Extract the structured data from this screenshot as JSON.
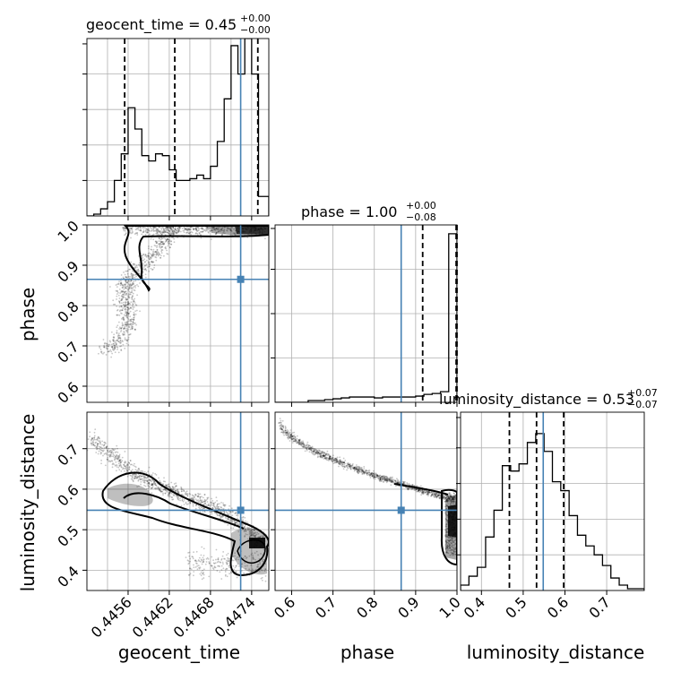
{
  "colors": {
    "truth": "#4682b4",
    "hist": "#000000",
    "grid": "#b0b0b0",
    "points": "#000000"
  },
  "chart_data": {
    "type": "corner",
    "parameters": [
      "geocent_time",
      "phase",
      "luminosity_distance"
    ],
    "truth": {
      "geocent_time": 0.44724,
      "phase": 0.865,
      "luminosity_distance": 0.548
    },
    "panels": {
      "geocent_time_hist": {
        "title_main": "geocent_time = 0.45",
        "title_sup": "+0.00",
        "title_sub": "−0.00",
        "xlim": [
          0.445,
          0.44765
        ],
        "ylim": [
          0,
          1.0
        ],
        "edges": [
          0.445,
          0.4451,
          0.4452,
          0.4453,
          0.4454,
          0.4455,
          0.4456,
          0.4457,
          0.4458,
          0.4459,
          0.446,
          0.4461,
          0.4462,
          0.4463,
          0.4464,
          0.4465,
          0.4466,
          0.4467,
          0.4468,
          0.4469,
          0.447,
          0.4471,
          0.4472,
          0.4473,
          0.4474,
          0.4475,
          0.44765
        ],
        "counts": [
          0.0,
          0.01,
          0.04,
          0.08,
          0.2,
          0.35,
          0.61,
          0.49,
          0.34,
          0.31,
          0.35,
          0.34,
          0.26,
          0.2,
          0.2,
          0.21,
          0.23,
          0.21,
          0.28,
          0.42,
          0.66,
          0.96,
          0.8,
          1.0,
          0.8,
          0.11
        ],
        "quantiles": [
          0.44555,
          0.44628,
          0.44749
        ],
        "xgrid": [
          0.4453,
          0.4456,
          0.4459,
          0.4462,
          0.4465,
          0.4468,
          0.4471,
          0.4474
        ],
        "ygrid": [
          0.2,
          0.4,
          0.6,
          0.8
        ]
      },
      "phase_hist": {
        "title_main": "phase = 1.00",
        "title_sup": "+0.00",
        "title_sub": "−0.08",
        "xlim": [
          0.56,
          1.0
        ],
        "ylim": [
          0,
          1.0
        ],
        "edges": [
          0.56,
          0.58,
          0.6,
          0.62,
          0.64,
          0.66,
          0.68,
          0.7,
          0.72,
          0.74,
          0.76,
          0.78,
          0.8,
          0.82,
          0.84,
          0.86,
          0.88,
          0.9,
          0.92,
          0.94,
          0.96,
          0.98,
          1.0
        ],
        "counts": [
          0.0,
          0.0,
          0.0,
          0.0,
          0.01,
          0.01,
          0.015,
          0.02,
          0.025,
          0.03,
          0.03,
          0.03,
          0.025,
          0.03,
          0.03,
          0.03,
          0.03,
          0.035,
          0.045,
          0.05,
          0.06,
          0.95
        ],
        "quantiles": [
          0.917,
          0.998,
          1.0
        ],
        "xgrid": [
          0.6,
          0.7,
          0.8,
          0.9,
          1.0
        ],
        "ygrid": [
          0.25,
          0.5,
          0.75
        ]
      },
      "luminosity_distance_hist": {
        "title_main": "luminosity_distance = 0.53",
        "title_sup": "+0.07",
        "title_sub": "−0.07",
        "xlim": [
          0.35,
          0.79
        ],
        "ylim": [
          0,
          1.0
        ],
        "edges": [
          0.35,
          0.37,
          0.39,
          0.41,
          0.43,
          0.45,
          0.47,
          0.49,
          0.51,
          0.53,
          0.55,
          0.57,
          0.59,
          0.61,
          0.63,
          0.65,
          0.67,
          0.69,
          0.71,
          0.73,
          0.75,
          0.77,
          0.79
        ],
        "counts": [
          0.03,
          0.08,
          0.13,
          0.3,
          0.45,
          0.7,
          0.67,
          0.71,
          0.83,
          0.88,
          0.78,
          0.61,
          0.56,
          0.42,
          0.31,
          0.25,
          0.2,
          0.14,
          0.07,
          0.03,
          0.01,
          0.01
        ],
        "quantiles": [
          0.467,
          0.532,
          0.597
        ],
        "xgrid": [
          0.4,
          0.5,
          0.6,
          0.7
        ],
        "ygrid": [
          0.2,
          0.4,
          0.6,
          0.8
        ]
      },
      "phase_vs_geocent_time": {
        "xlim": [
          0.445,
          0.44765
        ],
        "ylim": [
          0.56,
          1.0
        ],
        "yticks": [
          "0.6",
          "0.7",
          "0.8",
          "0.9",
          "1.0"
        ],
        "yticks_values": [
          0.6,
          0.7,
          0.8,
          0.9,
          1.0
        ],
        "xgrid": [
          0.4453,
          0.4456,
          0.4459,
          0.4462,
          0.4465,
          0.4468,
          0.4471,
          0.4474
        ]
      },
      "luminosity_distance_vs_geocent_time": {
        "xlim": [
          0.445,
          0.44765
        ],
        "ylim": [
          0.35,
          0.79
        ],
        "xticks": [
          "0.4456",
          "0.4462",
          "0.4468",
          "0.4474"
        ],
        "xticks_values": [
          0.4456,
          0.4462,
          0.4468,
          0.4474
        ],
        "yticks": [
          "0.4",
          "0.5",
          "0.6",
          "0.7"
        ],
        "yticks_values": [
          0.4,
          0.5,
          0.6,
          0.7
        ],
        "xgrid": [
          0.4453,
          0.4456,
          0.4459,
          0.4462,
          0.4465,
          0.4468,
          0.4471,
          0.4474
        ]
      },
      "luminosity_distance_vs_phase": {
        "xlim": [
          0.56,
          1.0
        ],
        "ylim": [
          0.35,
          0.79
        ],
        "xticks": [
          "0.6",
          "0.7",
          "0.8",
          "0.9",
          "1.0"
        ],
        "xticks_values": [
          0.6,
          0.7,
          0.8,
          0.9,
          1.0
        ],
        "yticks_values": [
          0.4,
          0.5,
          0.6,
          0.7
        ]
      },
      "luminosity_distance_axis": {
        "xticks": [
          "0.4",
          "0.5",
          "0.6",
          "0.7"
        ],
        "xticks_values": [
          0.4,
          0.5,
          0.6,
          0.7
        ]
      }
    },
    "xlabels": [
      "geocent_time",
      "phase",
      "luminosity_distance"
    ],
    "ylabels": [
      "phase",
      "luminosity_distance"
    ],
    "grid": true
  }
}
